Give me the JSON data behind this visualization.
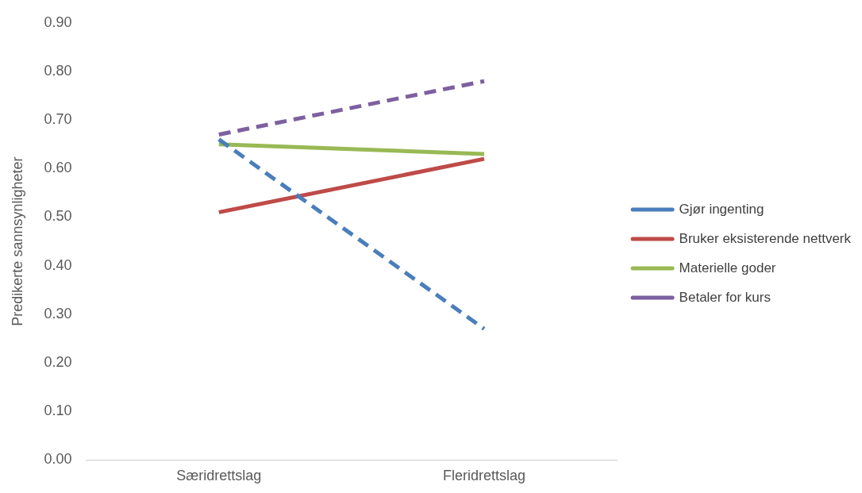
{
  "chart_data": {
    "type": "line",
    "ylabel": "Predikerte sannsynligheter",
    "categories": [
      "Særidrettslag",
      "Fleridrettslag"
    ],
    "series": [
      {
        "name": "Gjør ingenting",
        "color": "#4a7ebb",
        "values": [
          0.66,
          0.27
        ],
        "line_style": "dashed"
      },
      {
        "name": "Bruker eksisterende nettverk",
        "color": "#be4b48",
        "values": [
          0.51,
          0.62
        ],
        "line_style": "solid"
      },
      {
        "name": "Materielle goder",
        "color": "#98b954",
        "values": [
          0.65,
          0.63
        ],
        "line_style": "solid"
      },
      {
        "name": "Betaler for kurs",
        "color": "#7d60a0",
        "values": [
          0.67,
          0.78
        ],
        "line_style": "dashed"
      }
    ],
    "ylim": [
      0,
      0.9
    ],
    "yticks": [
      {
        "value": 0,
        "label": "0.00"
      },
      {
        "value": 0.1,
        "label": "0.10"
      },
      {
        "value": 0.2,
        "label": "0.20"
      },
      {
        "value": 0.3,
        "label": "0.30"
      },
      {
        "value": 0.4,
        "label": "0.40"
      },
      {
        "value": 0.5,
        "label": "0.50"
      },
      {
        "value": 0.6,
        "label": "0.60"
      },
      {
        "value": 0.7,
        "label": "0.70"
      },
      {
        "value": 0.8,
        "label": "0.80"
      },
      {
        "value": 0.9,
        "label": "0.90"
      }
    ],
    "grid": false,
    "legend": "right",
    "marker": "none"
  }
}
